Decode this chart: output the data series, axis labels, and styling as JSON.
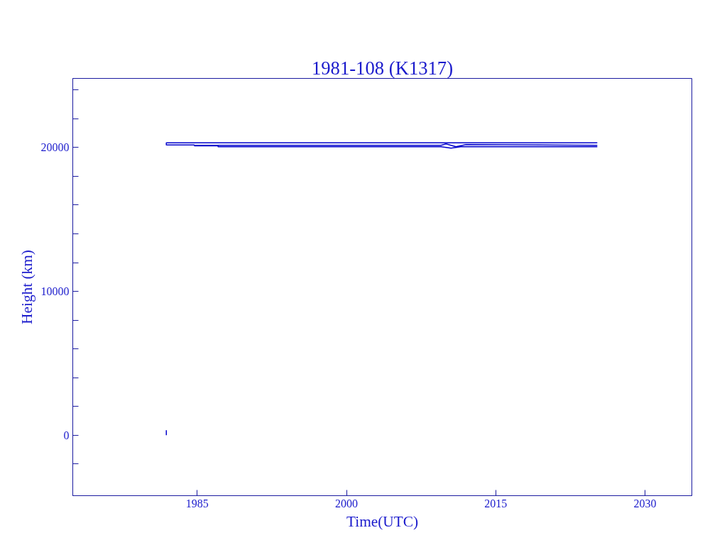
{
  "chart_data": {
    "type": "line",
    "title": "1981-108 (K1317)",
    "xlabel": "Time(UTC)",
    "ylabel": "Height (km)",
    "xlim": [
      1972.5,
      2034.7
    ],
    "ylim": [
      -4200,
      24800
    ],
    "xticks": [
      1985,
      2000,
      2015,
      2030
    ],
    "yticks": [
      {
        "value": -2000,
        "label": null
      },
      0,
      {
        "value": 2000,
        "label": null
      },
      {
        "value": 4000,
        "label": null
      },
      {
        "value": 6000,
        "label": null
      },
      {
        "value": 8000,
        "label": null
      },
      10000,
      {
        "value": 12000,
        "label": null
      },
      {
        "value": 14000,
        "label": null
      },
      {
        "value": 16000,
        "label": null
      },
      {
        "value": 18000,
        "label": null
      },
      20000,
      {
        "value": 22000,
        "label": null
      },
      {
        "value": 24000,
        "label": null
      }
    ],
    "grid": false,
    "series": [
      {
        "color": "#0000cc",
        "x": [
          1981.9,
          1981.9
        ],
        "values": [
          0,
          350
        ]
      },
      {
        "color": "#0000cc",
        "x": [
          1981.9,
          1981.9,
          2025.2
        ],
        "values": [
          20150,
          20330,
          20330
        ]
      },
      {
        "color": "#0000cc",
        "x": [
          1981.9,
          1984.7,
          1984.7,
          1987.1,
          2009.5,
          2010.0,
          2011.0,
          2012.0,
          2025.2
        ],
        "values": [
          20180,
          20180,
          20150,
          20150,
          20150,
          20250,
          20050,
          20200,
          20150
        ]
      },
      {
        "color": "#0000cc",
        "x": [
          1984.7,
          1987.1,
          1987.1,
          2009.5,
          2010.5,
          2011.5,
          2025.2
        ],
        "values": [
          20120,
          20120,
          20050,
          20050,
          19950,
          20050,
          20050
        ]
      }
    ]
  }
}
